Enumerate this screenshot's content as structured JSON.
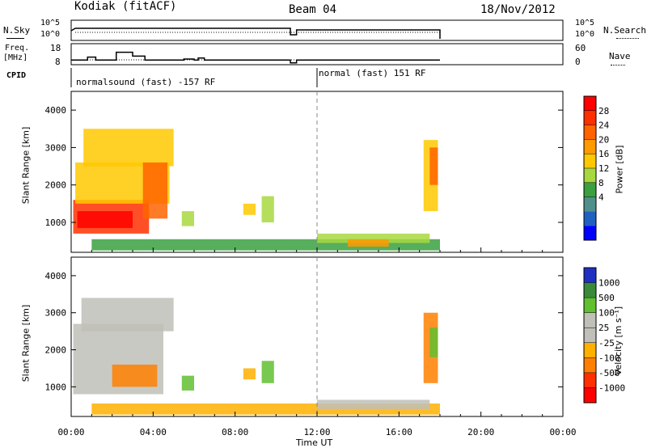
{
  "header": {
    "station": "Kodiak (fitACF)",
    "beam": "Beam 04",
    "date": "18/Nov/2012"
  },
  "top_panels": {
    "nsky_label": "N.Sky",
    "nsearch_label": "N.Search",
    "noise_ticks_left": [
      "10^5",
      "10^0"
    ],
    "noise_ticks_right": [
      "10^5",
      "10^0"
    ],
    "freq_label_line1": "Freq.",
    "freq_label_line2": "[MHz]",
    "nave_label": "Nave",
    "freq_ticks": [
      "18",
      "8"
    ],
    "nave_ticks": [
      "60",
      "0"
    ],
    "cpid_label": "CPID",
    "cpid_segments": [
      {
        "start_hour": 0,
        "end_hour": 12,
        "text": "normalsound (fast) -157 RF"
      },
      {
        "start_hour": 12,
        "end_hour": 18,
        "text": "normal (fast) 151 RF"
      }
    ],
    "freq_data": {
      "unit": "MHz",
      "range": [
        8,
        18
      ],
      "points": [
        [
          0,
          10
        ],
        [
          0.8,
          10
        ],
        [
          0.8,
          11.5
        ],
        [
          1.2,
          11.5
        ],
        [
          1.2,
          10
        ],
        [
          2.2,
          10
        ],
        [
          2.2,
          14
        ],
        [
          3,
          14
        ],
        [
          3,
          12
        ],
        [
          3.6,
          12
        ],
        [
          3.6,
          10
        ],
        [
          5.5,
          10
        ],
        [
          5.5,
          10.5
        ],
        [
          6,
          10.5
        ],
        [
          6,
          10
        ],
        [
          6.2,
          10
        ],
        [
          6.2,
          11
        ],
        [
          6.5,
          11
        ],
        [
          6.5,
          10
        ],
        [
          10.7,
          10
        ],
        [
          10.7,
          8.5
        ],
        [
          11,
          8.5
        ],
        [
          11,
          10
        ],
        [
          18,
          10
        ]
      ]
    }
  },
  "x_axis": {
    "label": "Time UT",
    "ticks": [
      "00:00",
      "04:00",
      "08:00",
      "12:00",
      "16:00",
      "20:00",
      "00:00"
    ],
    "range_hours": [
      0,
      24
    ]
  },
  "chart_data": [
    {
      "type": "heatmap",
      "title": "",
      "xlabel": "Time UT",
      "ylabel": "Slant Range [km]",
      "x_range_hours": [
        0,
        24
      ],
      "ylim": [
        200,
        4500
      ],
      "y_ticks": [
        1000,
        2000,
        3000,
        4000
      ],
      "colorbar": {
        "label": "Power [dB]",
        "ticks": [
          "28",
          "24",
          "20",
          "16",
          "12",
          "8",
          "4"
        ],
        "colors": [
          "#ff0000",
          "#ff3000",
          "#ff6400",
          "#ff9a00",
          "#ffc800",
          "#a8d840",
          "#3aa040",
          "#50908a",
          "#2060c0",
          "#0000ff"
        ]
      },
      "regions": [
        {
          "t0": 0.1,
          "t1": 3.8,
          "r0": 700,
          "r1": 1600,
          "value": 24
        },
        {
          "t0": 0.3,
          "t1": 3.0,
          "r0": 850,
          "r1": 1300,
          "value": 28
        },
        {
          "t0": 0.2,
          "t1": 4.8,
          "r0": 1500,
          "r1": 2600,
          "value": 14
        },
        {
          "t0": 0.6,
          "t1": 5.0,
          "r0": 2500,
          "r1": 3500,
          "value": 12
        },
        {
          "t0": 3.5,
          "t1": 4.7,
          "r0": 1100,
          "r1": 2600,
          "value": 20
        },
        {
          "t0": 5.4,
          "t1": 6.0,
          "r0": 900,
          "r1": 1300,
          "value": 10
        },
        {
          "t0": 8.4,
          "t1": 9.0,
          "r0": 1200,
          "r1": 1500,
          "value": 12
        },
        {
          "t0": 9.3,
          "t1": 9.9,
          "r0": 1000,
          "r1": 1700,
          "value": 9
        },
        {
          "t0": 1.0,
          "t1": 18.0,
          "r0": 250,
          "r1": 550,
          "value": 6
        },
        {
          "t0": 12.0,
          "t1": 17.5,
          "r0": 450,
          "r1": 700,
          "value": 10
        },
        {
          "t0": 13.5,
          "t1": 15.5,
          "r0": 350,
          "r1": 550,
          "value": 18
        },
        {
          "t0": 17.2,
          "t1": 17.9,
          "r0": 1300,
          "r1": 3200,
          "value": 14
        },
        {
          "t0": 17.5,
          "t1": 17.9,
          "r0": 2000,
          "r1": 3000,
          "value": 20
        }
      ]
    },
    {
      "type": "heatmap",
      "title": "",
      "xlabel": "Time UT",
      "ylabel": "Slant Range [km]",
      "x_range_hours": [
        0,
        24
      ],
      "ylim": [
        200,
        4500
      ],
      "y_ticks": [
        1000,
        2000,
        3000,
        4000
      ],
      "colorbar": {
        "label": "Velocity [m s⁻¹]",
        "ticks": [
          "1000",
          "500",
          "100",
          "25",
          "-25",
          "-100",
          "-500",
          "-1000"
        ],
        "colors": [
          "#2030c0",
          "#3a8a3a",
          "#60c030",
          "#c0c0b8",
          "#c0c0b8",
          "#ffb000",
          "#ff8000",
          "#ff3000",
          "#ff0000"
        ]
      },
      "regions": [
        {
          "t0": 0.1,
          "t1": 4.5,
          "r0": 800,
          "r1": 2700,
          "value": 0
        },
        {
          "t0": 0.5,
          "t1": 5.0,
          "r0": 2500,
          "r1": 3400,
          "value": 0
        },
        {
          "t0": 2.0,
          "t1": 4.2,
          "r0": 1000,
          "r1": 1600,
          "value": -150
        },
        {
          "t0": 5.4,
          "t1": 6.0,
          "r0": 900,
          "r1": 1300,
          "value": 120
        },
        {
          "t0": 8.4,
          "t1": 9.0,
          "r0": 1200,
          "r1": 1500,
          "value": -100
        },
        {
          "t0": 9.3,
          "t1": 9.9,
          "r0": 1100,
          "r1": 1700,
          "value": 120
        },
        {
          "t0": 1.0,
          "t1": 18.0,
          "r0": 250,
          "r1": 550,
          "value": -80
        },
        {
          "t0": 12.0,
          "t1": 17.5,
          "r0": 400,
          "r1": 650,
          "value": 0
        },
        {
          "t0": 17.2,
          "t1": 17.9,
          "r0": 1100,
          "r1": 3000,
          "value": -200
        },
        {
          "t0": 17.5,
          "t1": 17.9,
          "r0": 1800,
          "r1": 2600,
          "value": 100
        }
      ]
    }
  ]
}
